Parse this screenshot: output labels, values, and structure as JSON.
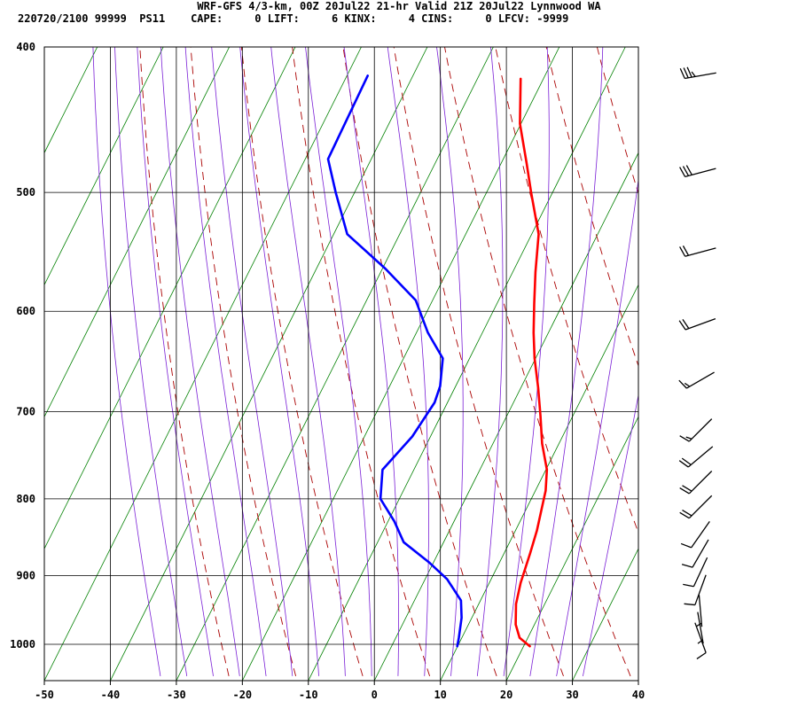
{
  "header": {
    "line1": "WRF-GFS 4/3-km, 00Z 20Jul22 21-hr Valid 21Z 20Jul22 Lynnwood WA",
    "line2": "220720/2100 99999  PS11    CAPE:     0 LIFT:     6 KINX:     4 CINS:     0 LFCV: -9999"
  },
  "colors": {
    "temperature": "#ff0000",
    "dewpoint": "#0000ff",
    "dry_adiabat": "#aa0000",
    "moist_adiabat": "#7a1fd6",
    "isotherm": "#008000",
    "grid": "#000000"
  },
  "chart_data": {
    "type": "line",
    "title": "",
    "xlabel": "",
    "ylabel": "",
    "x_ticks": [
      "-50",
      "-40",
      "-30",
      "-20",
      "-10",
      "0",
      "10",
      "20",
      "30",
      "40"
    ],
    "y_ticks": [
      "400",
      "500",
      "600",
      "700",
      "800",
      "900",
      "1000"
    ],
    "xlim": [
      -50,
      40
    ],
    "ylim_pressure": [
      1040,
      400
    ],
    "grid": true,
    "series": [
      {
        "key": "temperature",
        "points": [
          {
            "x": -20.7,
            "p": 420
          },
          {
            "x": -17.4,
            "p": 450
          },
          {
            "x": -13.4,
            "p": 478
          },
          {
            "x": -10.5,
            "p": 500
          },
          {
            "x": -6.2,
            "p": 533
          },
          {
            "x": -3.8,
            "p": 565
          },
          {
            "x": -1.6,
            "p": 593
          },
          {
            "x": 0.5,
            "p": 620
          },
          {
            "x": 2.6,
            "p": 645
          },
          {
            "x": 5.4,
            "p": 675
          },
          {
            "x": 7.9,
            "p": 705
          },
          {
            "x": 10.2,
            "p": 735
          },
          {
            "x": 12.9,
            "p": 765
          },
          {
            "x": 14.3,
            "p": 790
          },
          {
            "x": 16.0,
            "p": 840
          },
          {
            "x": 16.7,
            "p": 870
          },
          {
            "x": 17.5,
            "p": 910
          },
          {
            "x": 18.4,
            "p": 940
          },
          {
            "x": 19.9,
            "p": 970
          },
          {
            "x": 21.5,
            "p": 990
          },
          {
            "x": 23.7,
            "p": 1003
          }
        ]
      },
      {
        "key": "dewpoint",
        "points": [
          {
            "x": -44.1,
            "p": 418
          },
          {
            "x": -43.8,
            "p": 475
          },
          {
            "x": -40.1,
            "p": 500
          },
          {
            "x": -35.2,
            "p": 533
          },
          {
            "x": -26.8,
            "p": 562
          },
          {
            "x": -19.8,
            "p": 590
          },
          {
            "x": -15.5,
            "p": 620
          },
          {
            "x": -11.3,
            "p": 645
          },
          {
            "x": -9.6,
            "p": 673
          },
          {
            "x": -9.2,
            "p": 690
          },
          {
            "x": -10.0,
            "p": 727
          },
          {
            "x": -12.0,
            "p": 765
          },
          {
            "x": -10.1,
            "p": 800
          },
          {
            "x": -6.3,
            "p": 828
          },
          {
            "x": -3.3,
            "p": 855
          },
          {
            "x": 2.1,
            "p": 882
          },
          {
            "x": 6.1,
            "p": 905
          },
          {
            "x": 9.8,
            "p": 935
          },
          {
            "x": 11.2,
            "p": 960
          },
          {
            "x": 12.3,
            "p": 990
          },
          {
            "x": 12.7,
            "p": 1003
          }
        ]
      }
    ],
    "wind_barbs": [
      {
        "p": 418,
        "dir": 260,
        "speed": 35
      },
      {
        "p": 485,
        "dir": 255,
        "speed": 30
      },
      {
        "p": 548,
        "dir": 255,
        "speed": 20
      },
      {
        "p": 612,
        "dir": 250,
        "speed": 20
      },
      {
        "p": 667,
        "dir": 240,
        "speed": 15
      },
      {
        "p": 720,
        "dir": 225,
        "speed": 15
      },
      {
        "p": 750,
        "dir": 230,
        "speed": 20
      },
      {
        "p": 780,
        "dir": 225,
        "speed": 20
      },
      {
        "p": 810,
        "dir": 225,
        "speed": 20
      },
      {
        "p": 845,
        "dir": 215,
        "speed": 10
      },
      {
        "p": 870,
        "dir": 210,
        "speed": 10
      },
      {
        "p": 895,
        "dir": 205,
        "speed": 10
      },
      {
        "p": 920,
        "dir": 200,
        "speed": 10
      },
      {
        "p": 950,
        "dir": 175,
        "speed": 5
      },
      {
        "p": 975,
        "dir": 170,
        "speed": 5
      },
      {
        "p": 990,
        "dir": 160,
        "speed": 10
      }
    ]
  }
}
